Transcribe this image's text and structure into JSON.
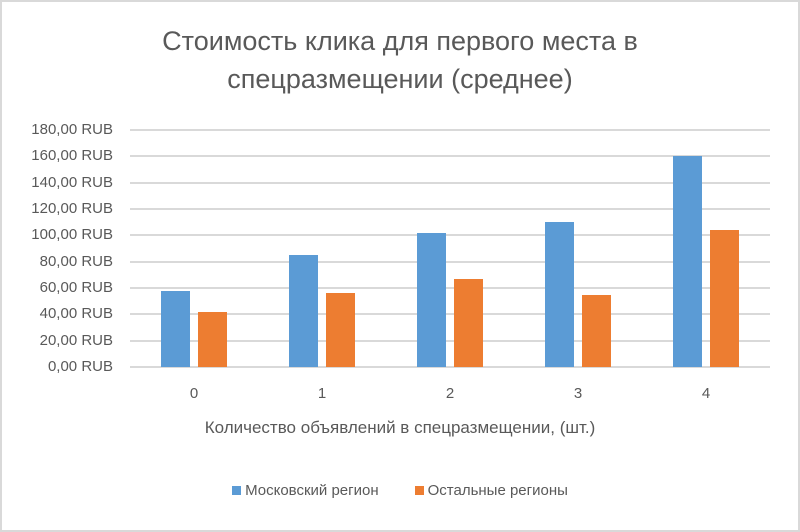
{
  "chart_data": {
    "type": "bar",
    "title": "Стоимость клика для первого места в спецразмещении (среднее)",
    "title_lines": [
      "Стоимость клика для первого места в",
      "спецразмещении (среднее)"
    ],
    "xlabel": "Количество объявлений в спецразмещении, (шт.)",
    "ylabel": "",
    "categories": [
      "0",
      "1",
      "2",
      "3",
      "4"
    ],
    "series": [
      {
        "name": "Московский регион",
        "color": "#5b9bd5",
        "values": [
          58,
          85,
          102,
          110,
          160
        ]
      },
      {
        "name": "Остальные регионы",
        "color": "#ed7d31",
        "values": [
          42,
          56,
          67,
          55,
          104
        ]
      }
    ],
    "ylim": [
      0,
      180
    ],
    "yticks": [
      "0,00 RUB",
      "20,00 RUB",
      "40,00 RUB",
      "60,00 RUB",
      "80,00 RUB",
      "100,00 RUB",
      "120,00 RUB",
      "140,00 RUB",
      "160,00 RUB",
      "180,00 RUB"
    ],
    "grid": true,
    "legend_position": "bottom"
  }
}
